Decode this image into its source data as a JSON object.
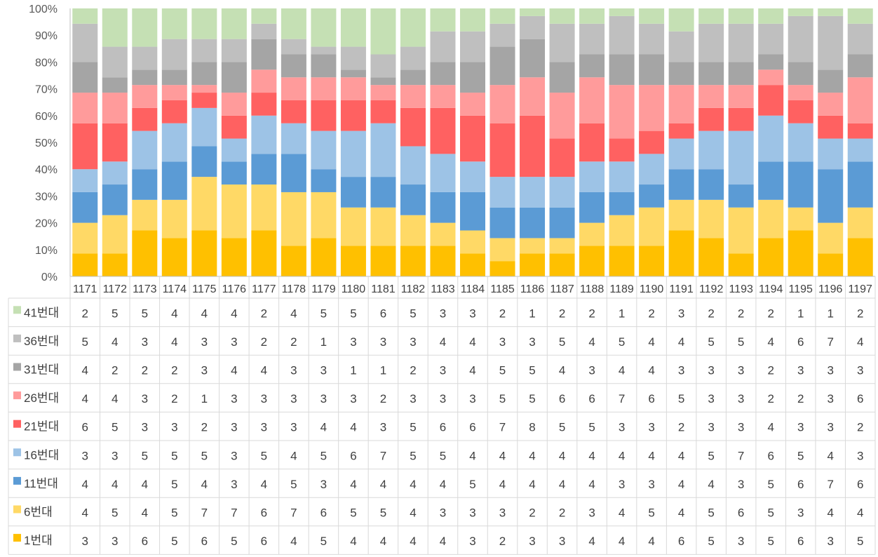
{
  "chart_data": {
    "type": "bar",
    "stacking": "percent",
    "grid": false,
    "legend": "data-table-left",
    "ylim": [
      0,
      100
    ],
    "yticks": [
      "0%",
      "10%",
      "20%",
      "30%",
      "40%",
      "50%",
      "60%",
      "70%",
      "80%",
      "90%",
      "100%"
    ],
    "categories": [
      "1171",
      "1172",
      "1173",
      "1174",
      "1175",
      "1176",
      "1177",
      "1178",
      "1179",
      "1180",
      "1181",
      "1182",
      "1183",
      "1184",
      "1185",
      "1186",
      "1187",
      "1188",
      "1189",
      "1190",
      "1191",
      "1192",
      "1193",
      "1194",
      "1195",
      "1196",
      "1197"
    ],
    "series": [
      {
        "name": "1번대",
        "color": "#FFC000",
        "values": [
          3,
          3,
          6,
          5,
          6,
          5,
          6,
          4,
          5,
          4,
          4,
          4,
          4,
          3,
          2,
          3,
          3,
          4,
          4,
          4,
          6,
          5,
          3,
          5,
          6,
          3,
          5
        ]
      },
      {
        "name": "6번대",
        "color": "#FFD966",
        "values": [
          4,
          5,
          4,
          5,
          7,
          7,
          6,
          7,
          6,
          5,
          5,
          4,
          3,
          3,
          3,
          2,
          2,
          3,
          4,
          5,
          4,
          5,
          6,
          5,
          3,
          4,
          4
        ]
      },
      {
        "name": "11번대",
        "color": "#5B9BD5",
        "values": [
          4,
          4,
          4,
          5,
          4,
          3,
          4,
          5,
          3,
          4,
          4,
          4,
          4,
          5,
          4,
          4,
          4,
          4,
          3,
          3,
          4,
          4,
          3,
          5,
          6,
          7,
          6
        ]
      },
      {
        "name": "16번대",
        "color": "#9DC3E6",
        "values": [
          3,
          3,
          5,
          5,
          5,
          3,
          5,
          4,
          5,
          6,
          7,
          5,
          5,
          4,
          4,
          4,
          4,
          4,
          4,
          4,
          4,
          5,
          7,
          6,
          5,
          4,
          3
        ]
      },
      {
        "name": "21번대",
        "color": "#FF6161",
        "values": [
          6,
          5,
          3,
          3,
          2,
          3,
          3,
          3,
          4,
          4,
          3,
          5,
          6,
          6,
          7,
          8,
          5,
          5,
          3,
          3,
          2,
          3,
          3,
          4,
          3,
          3,
          2
        ]
      },
      {
        "name": "26번대",
        "color": "#FF9B9B",
        "values": [
          4,
          4,
          3,
          2,
          1,
          3,
          3,
          3,
          3,
          3,
          2,
          3,
          3,
          3,
          5,
          5,
          6,
          6,
          7,
          6,
          5,
          3,
          3,
          2,
          2,
          3,
          6
        ]
      },
      {
        "name": "31번대",
        "color": "#A5A5A5",
        "values": [
          4,
          2,
          2,
          2,
          3,
          4,
          4,
          3,
          3,
          1,
          1,
          2,
          3,
          4,
          5,
          5,
          4,
          3,
          4,
          4,
          3,
          3,
          3,
          2,
          3,
          3,
          3
        ]
      },
      {
        "name": "36번대",
        "color": "#BFBFBF",
        "values": [
          5,
          4,
          3,
          4,
          3,
          3,
          2,
          2,
          1,
          3,
          3,
          3,
          4,
          4,
          3,
          3,
          5,
          4,
          5,
          4,
          4,
          5,
          5,
          4,
          6,
          7,
          4
        ]
      },
      {
        "name": "41번대",
        "color": "#C5E0B4",
        "values": [
          2,
          5,
          5,
          4,
          4,
          4,
          2,
          4,
          5,
          5,
          6,
          5,
          3,
          3,
          2,
          1,
          2,
          2,
          1,
          2,
          3,
          2,
          2,
          2,
          1,
          1,
          2
        ]
      }
    ]
  }
}
